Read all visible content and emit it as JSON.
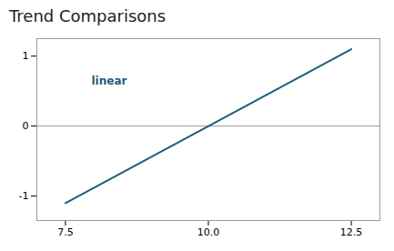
{
  "chart_data": {
    "type": "line",
    "title": "Trend Comparisons",
    "x": [
      7.5,
      12.5
    ],
    "series": [
      {
        "name": "linear",
        "color": "#1a5f7a",
        "values": [
          -1.1,
          1.1
        ]
      }
    ],
    "hline": 0,
    "hline_color": "#999999",
    "xlim": [
      7.0,
      13.0
    ],
    "ylim": [
      -1.35,
      1.25
    ],
    "xticks": [
      7.5,
      {
        "value": 10.0,
        "label": "10.0"
      },
      12.5
    ],
    "yticks": [
      -1,
      0,
      1
    ],
    "grid": false,
    "legend": "upper left"
  }
}
